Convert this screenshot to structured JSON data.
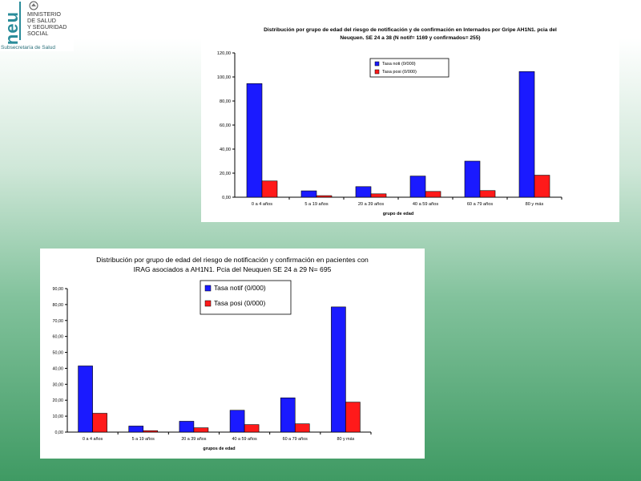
{
  "logo": {
    "wordmark": "neu",
    "line1": "MINISTERIO",
    "line2": "DE SALUD",
    "line3": "Y SEGURIDAD",
    "line4": "SOCIAL",
    "subtitle": "Subsecretaría de Salud",
    "color": "#2a8c9a"
  },
  "chart_data": [
    {
      "type": "bar",
      "title": "Distribución por grupo de edad del riesgo de notificación y de confirmación en Internados por Gripe AH1N1. pcia del Neuquen. SE 24 a 38 (N notif= 1169 y confirmados= 255)",
      "title_lines": [
        "Distribución por grupo de edad del riesgo de notificación y de confirmación en Internados por Gripe AH1N1. pcia del",
        "Neuquen. SE 24 a 38 (N notif= 1169  y confirmados= 255)"
      ],
      "xlabel": "grupo de edad",
      "ylabel": "",
      "categories": [
        "0 a 4 años",
        "5 a 19 años",
        "20 a 39 años",
        "40 a 59 años",
        "60 a 79 años",
        "80 y más"
      ],
      "series": [
        {
          "name": "Tasa noti (0/000)",
          "color": "#1a1aff",
          "values": [
            94.5,
            5.3,
            8.8,
            17.6,
            30.0,
            104.5
          ]
        },
        {
          "name": "Tasa posi (0/000)",
          "color": "#ff1a1a",
          "values": [
            13.5,
            1.3,
            2.8,
            4.8,
            5.5,
            18.3
          ]
        }
      ],
      "ylim": [
        0,
        120
      ],
      "yticks": [
        "0,00",
        "20,00",
        "40,00",
        "60,00",
        "80,00",
        "100,00",
        "120,00"
      ],
      "grid": false,
      "legend": "top-center"
    },
    {
      "type": "bar",
      "title": "Distribución por grupo de edad del riesgo de notificación y confirmación en pacientes con IRAG asociados a AH1N1. Pcia del Neuquen SE 24 a 29 N= 695",
      "title_lines": [
        "Distribución por grupo de edad del riesgo de notificación y confirmación en pacientes con",
        "IRAG asociados a AH1N1. Pcia del Neuquen SE 24 a 29 N= 695"
      ],
      "xlabel": "grupos de edad",
      "ylabel": "",
      "categories": [
        "0 a 4 años",
        "5 a 19 años",
        "20 a 39 años",
        "40 a 59 años",
        "60 a 79 años",
        "80 y más"
      ],
      "series": [
        {
          "name": "Tasa notif (0/000)",
          "color": "#1a1aff",
          "values": [
            41.5,
            3.8,
            6.8,
            13.7,
            21.5,
            78.5
          ]
        },
        {
          "name": "Tasa posi (0/000)",
          "color": "#ff1a1a",
          "values": [
            11.8,
            0.9,
            2.7,
            4.7,
            5.2,
            18.8
          ]
        }
      ],
      "ylim": [
        0,
        90
      ],
      "yticks": [
        "0,00",
        "10,00",
        "20,00",
        "30,00",
        "40,00",
        "50,00",
        "60,00",
        "70,00",
        "80,00",
        "90,00"
      ],
      "grid": false,
      "legend": "top-center"
    }
  ]
}
